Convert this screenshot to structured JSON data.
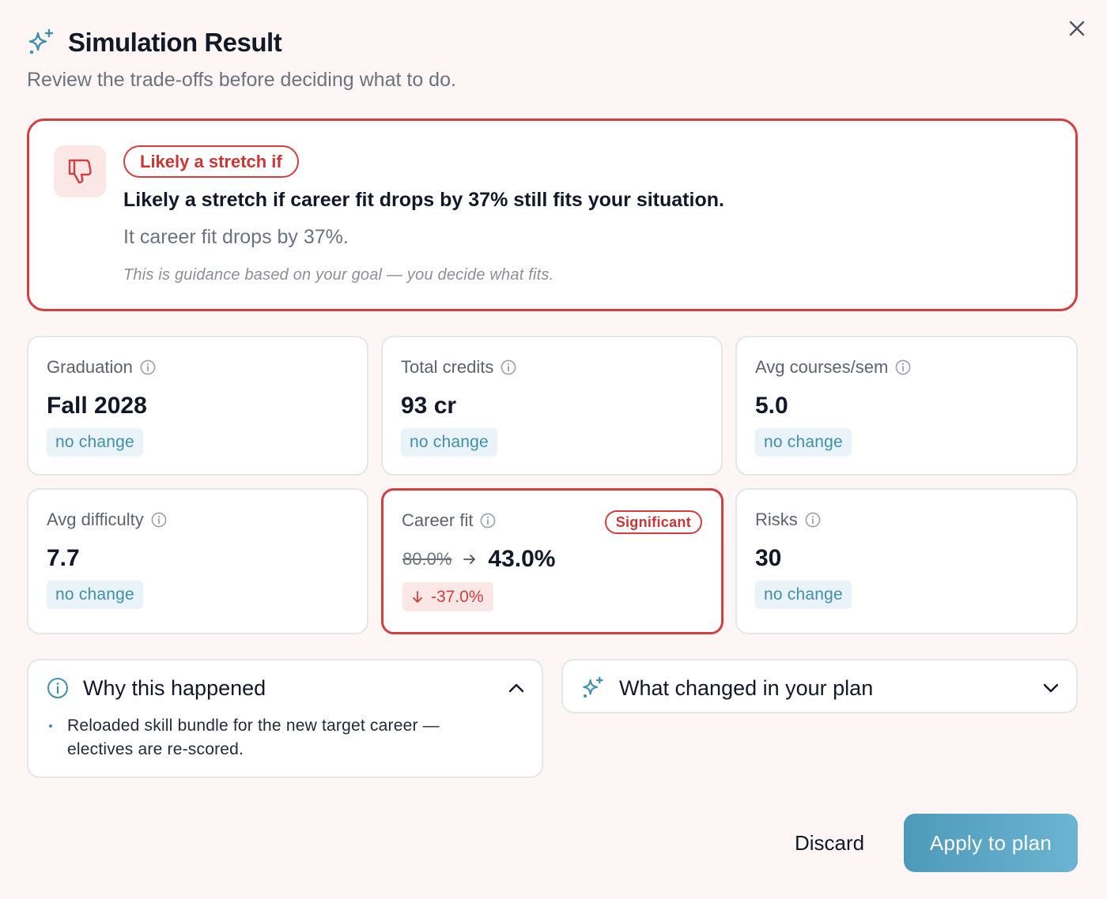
{
  "dialog": {
    "title": "Simulation Result",
    "subtitle": "Review the trade-offs before deciding what to do.",
    "close_icon": "close-icon",
    "title_icon": "sparkles-icon"
  },
  "verdict": {
    "icon": "thumbs-down-icon",
    "pill": "Likely a stretch if",
    "headline": "Likely a stretch if career fit drops by 37% still fits your situation.",
    "detail": "It career fit drops by 37%.",
    "note": "This is guidance based on your goal — you decide what fits."
  },
  "metrics": [
    {
      "label": "Graduation",
      "value": "Fall 2028",
      "change": "no change"
    },
    {
      "label": "Total credits",
      "value": "93 cr",
      "change": "no change"
    },
    {
      "label": "Avg courses/sem",
      "value": "5.0",
      "change": "no change"
    },
    {
      "label": "Avg difficulty",
      "value": "7.7",
      "change": "no change"
    },
    {
      "label": "Career fit",
      "badge": "Significant",
      "old_value": "80.0%",
      "new_value": "43.0%",
      "delta": "-37.0%"
    },
    {
      "label": "Risks",
      "value": "30",
      "change": "no change"
    }
  ],
  "why": {
    "title": "Why this happened",
    "icon": "info-icon",
    "expanded": true,
    "items": [
      "Reloaded skill bundle for the new target career — electives are re-scored."
    ]
  },
  "changes": {
    "title": "What changed in your plan",
    "icon": "sparkles-icon",
    "expanded": false
  },
  "footer": {
    "discard_label": "Discard",
    "apply_label": "Apply to plan"
  },
  "colors": {
    "danger": "#d33f3f",
    "accent": "#4d9ab8",
    "chip_bg": "#eaf4f8",
    "background": "#fdf6f5"
  }
}
